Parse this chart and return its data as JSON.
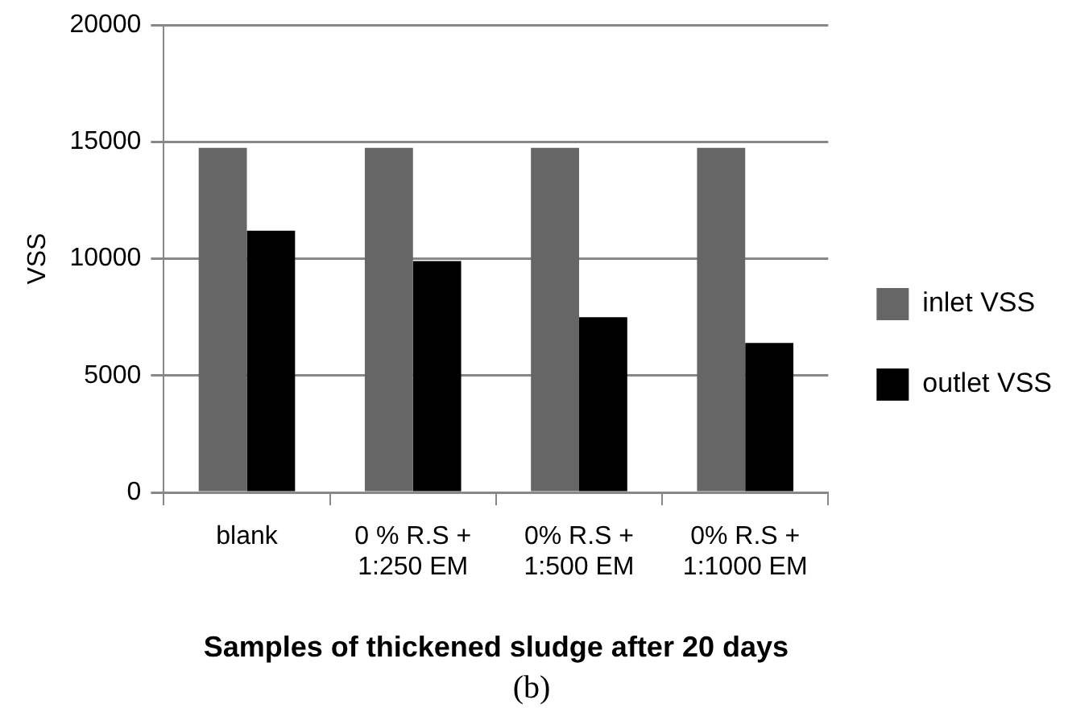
{
  "chart_data": {
    "type": "bar",
    "xlabel": "Samples of thickened sludge after 20 days",
    "ylabel": "VSS",
    "annotations": [
      "(b)"
    ],
    "categories": [
      "blank",
      "0 % R.S + 1:250 EM",
      "0% R.S + 1:500 EM",
      "0% R.S + 1:1000 EM"
    ],
    "series": [
      {
        "name": "inlet VSS",
        "color": "#666666",
        "values": [
          14750,
          14750,
          14750,
          14750
        ]
      },
      {
        "name": "outlet VSS",
        "color": "#000000",
        "values": [
          11200,
          9900,
          7500,
          6400
        ]
      }
    ],
    "ylim": [
      0,
      20000
    ],
    "yticks": [
      0,
      5000,
      10000,
      15000,
      20000
    ],
    "grid": "y",
    "legend": "right"
  }
}
